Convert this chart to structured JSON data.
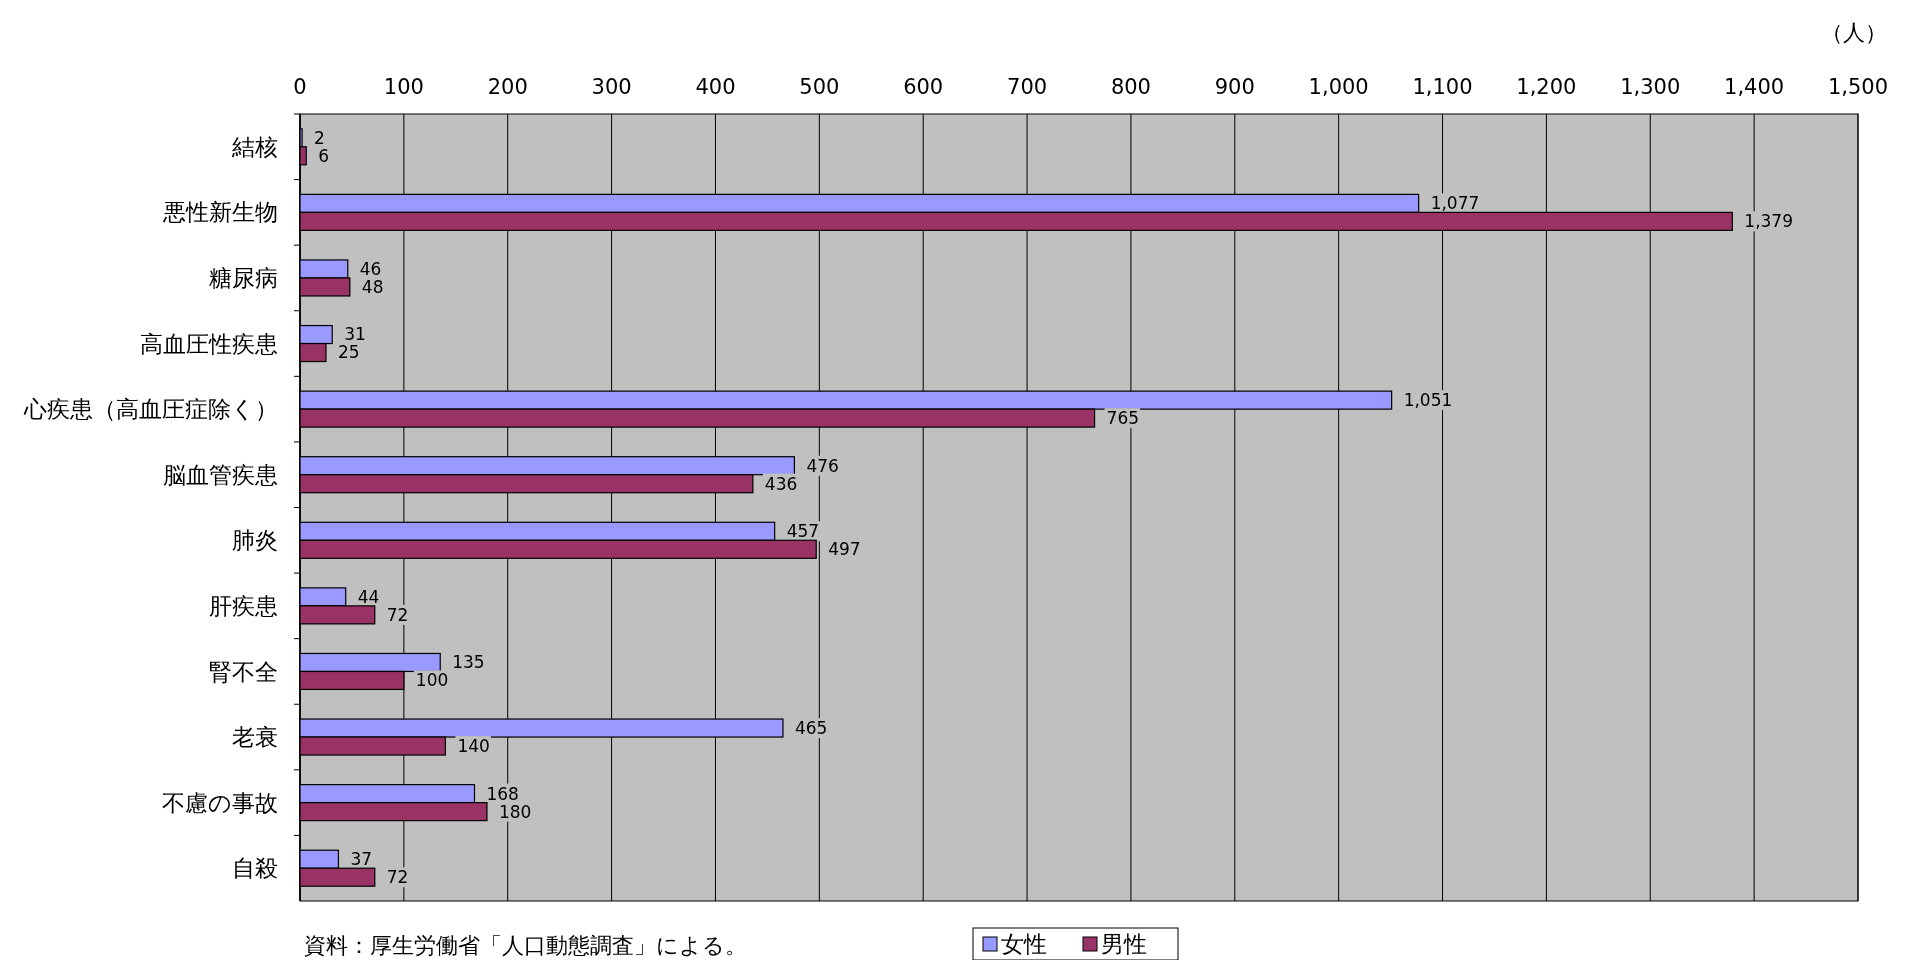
{
  "chart_data": {
    "type": "bar",
    "orientation": "horizontal",
    "xlabel": "（人）",
    "categories": [
      "結核",
      "悪性新生物",
      "糖尿病",
      "高血圧性疾患",
      "心疾患（高血圧症除く）",
      "脳血管疾患",
      "肺炎",
      "肝疾患",
      "腎不全",
      "老衰",
      "不慮の事故",
      "自殺"
    ],
    "series": [
      {
        "name": "女性",
        "color": "#9999ff",
        "values": [
          2,
          1077,
          46,
          31,
          1051,
          476,
          457,
          44,
          135,
          465,
          168,
          37
        ],
        "value_labels": [
          "2",
          "1,077",
          "46",
          "31",
          "1,051",
          "476",
          "457",
          "44",
          "135",
          "465",
          "168",
          "37"
        ]
      },
      {
        "name": "男性",
        "color": "#993366",
        "values": [
          6,
          1379,
          48,
          25,
          765,
          436,
          497,
          72,
          100,
          140,
          180,
          72
        ],
        "value_labels": [
          "6",
          "1,379",
          "48",
          "25",
          "765",
          "436",
          "497",
          "72",
          "100",
          "140",
          "180",
          "72"
        ]
      }
    ],
    "xlim": [
      0,
      1500
    ],
    "xticks": [
      0,
      100,
      200,
      300,
      400,
      500,
      600,
      700,
      800,
      900,
      {
        "value": 1000,
        "label": "1,000"
      },
      {
        "value": 1100,
        "label": "1,100"
      },
      {
        "value": 1200,
        "label": "1,200"
      },
      {
        "value": 1300,
        "label": "1,300"
      },
      {
        "value": 1400,
        "label": "1,400"
      },
      {
        "value": 1500,
        "label": "1,500"
      }
    ],
    "grid": "x",
    "legend": "bottom",
    "annotations": [
      "資料：厚生労働省「人口動態調査」による。"
    ]
  }
}
